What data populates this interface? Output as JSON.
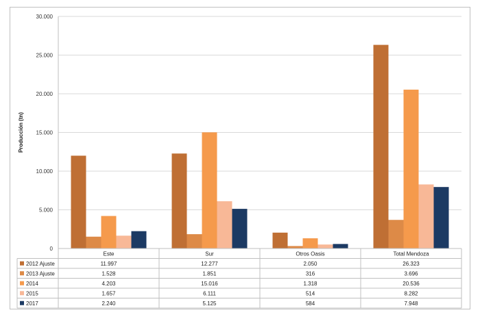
{
  "chart_data": {
    "type": "bar",
    "ylabel": "Producción (tn)",
    "ylim": [
      0,
      30000
    ],
    "yticks": [
      "0",
      "5.000",
      "10.000",
      "15.000",
      "20.000",
      "25.000",
      "30.000"
    ],
    "grid": true,
    "legend": "table",
    "categories": [
      "Este",
      "Sur",
      "Otros Oasis",
      "Total Mendoza"
    ],
    "series": [
      {
        "name": "2012 Ajuste",
        "color": "#bf6f34",
        "values": [
          11997,
          12277,
          2050,
          26323
        ],
        "labels": [
          "11.997",
          "12.277",
          "2.050",
          "26.323"
        ]
      },
      {
        "name": "2013 Ajuste",
        "color": "#dd8a47",
        "values": [
          1528,
          1851,
          316,
          3696
        ],
        "labels": [
          "1.528",
          "1.851",
          "316",
          "3.696"
        ]
      },
      {
        "name": "2014",
        "color": "#f59a4c",
        "values": [
          4203,
          15016,
          1318,
          20536
        ],
        "labels": [
          "4.203",
          "15.016",
          "1.318",
          "20.536"
        ]
      },
      {
        "name": "2015",
        "color": "#f8b897",
        "values": [
          1657,
          6111,
          514,
          8282
        ],
        "labels": [
          "1.657",
          "6.111",
          "514",
          "8.282"
        ]
      },
      {
        "name": "2017",
        "color": "#1c3a63",
        "values": [
          2240,
          5125,
          584,
          7948
        ],
        "labels": [
          "2.240",
          "5.125",
          "584",
          "7.948"
        ]
      }
    ]
  }
}
